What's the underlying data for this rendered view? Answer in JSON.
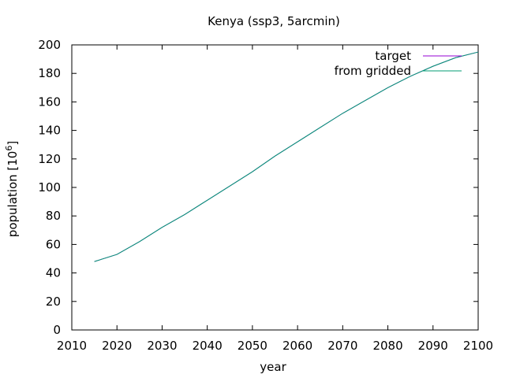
{
  "chart_data": {
    "type": "line",
    "title": "Kenya (ssp3, 5arcmin)",
    "xlabel": "year",
    "ylabel_main": "population [10",
    "ylabel_sup": "6",
    "ylabel_close": "]",
    "xlim": [
      2010,
      2100
    ],
    "ylim": [
      0,
      200
    ],
    "xticks": [
      2010,
      2020,
      2030,
      2040,
      2050,
      2060,
      2070,
      2080,
      2090,
      2100
    ],
    "yticks": [
      0,
      20,
      40,
      60,
      80,
      100,
      120,
      140,
      160,
      180,
      200
    ],
    "xtick_labels": [
      "2010",
      "2020",
      "2030",
      "2040",
      "2050",
      "2060",
      "2070",
      "2080",
      "2090",
      "2100"
    ],
    "ytick_labels": [
      "0",
      "20",
      "40",
      "60",
      "80",
      "100",
      "120",
      "140",
      "160",
      "180",
      "200"
    ],
    "grid": false,
    "legend_position": "top-right",
    "series": [
      {
        "name": "target",
        "color": "#9400d3",
        "x": [
          2015,
          2020,
          2025,
          2030,
          2035,
          2040,
          2045,
          2050,
          2055,
          2060,
          2065,
          2070,
          2075,
          2080,
          2085,
          2090,
          2095,
          2100
        ],
        "y": [
          48,
          53,
          62,
          72,
          81,
          91,
          101,
          111,
          122,
          132,
          142,
          152,
          161,
          170,
          178,
          185,
          191,
          195
        ]
      },
      {
        "name": "from gridded",
        "color": "#009e73",
        "x": [
          2015,
          2020,
          2025,
          2030,
          2035,
          2040,
          2045,
          2050,
          2055,
          2060,
          2065,
          2070,
          2075,
          2080,
          2085,
          2090,
          2095,
          2100
        ],
        "y": [
          48,
          53,
          62,
          72,
          81,
          91,
          101,
          111,
          122,
          132,
          142,
          152,
          161,
          170,
          178,
          185,
          191,
          195
        ]
      }
    ]
  }
}
